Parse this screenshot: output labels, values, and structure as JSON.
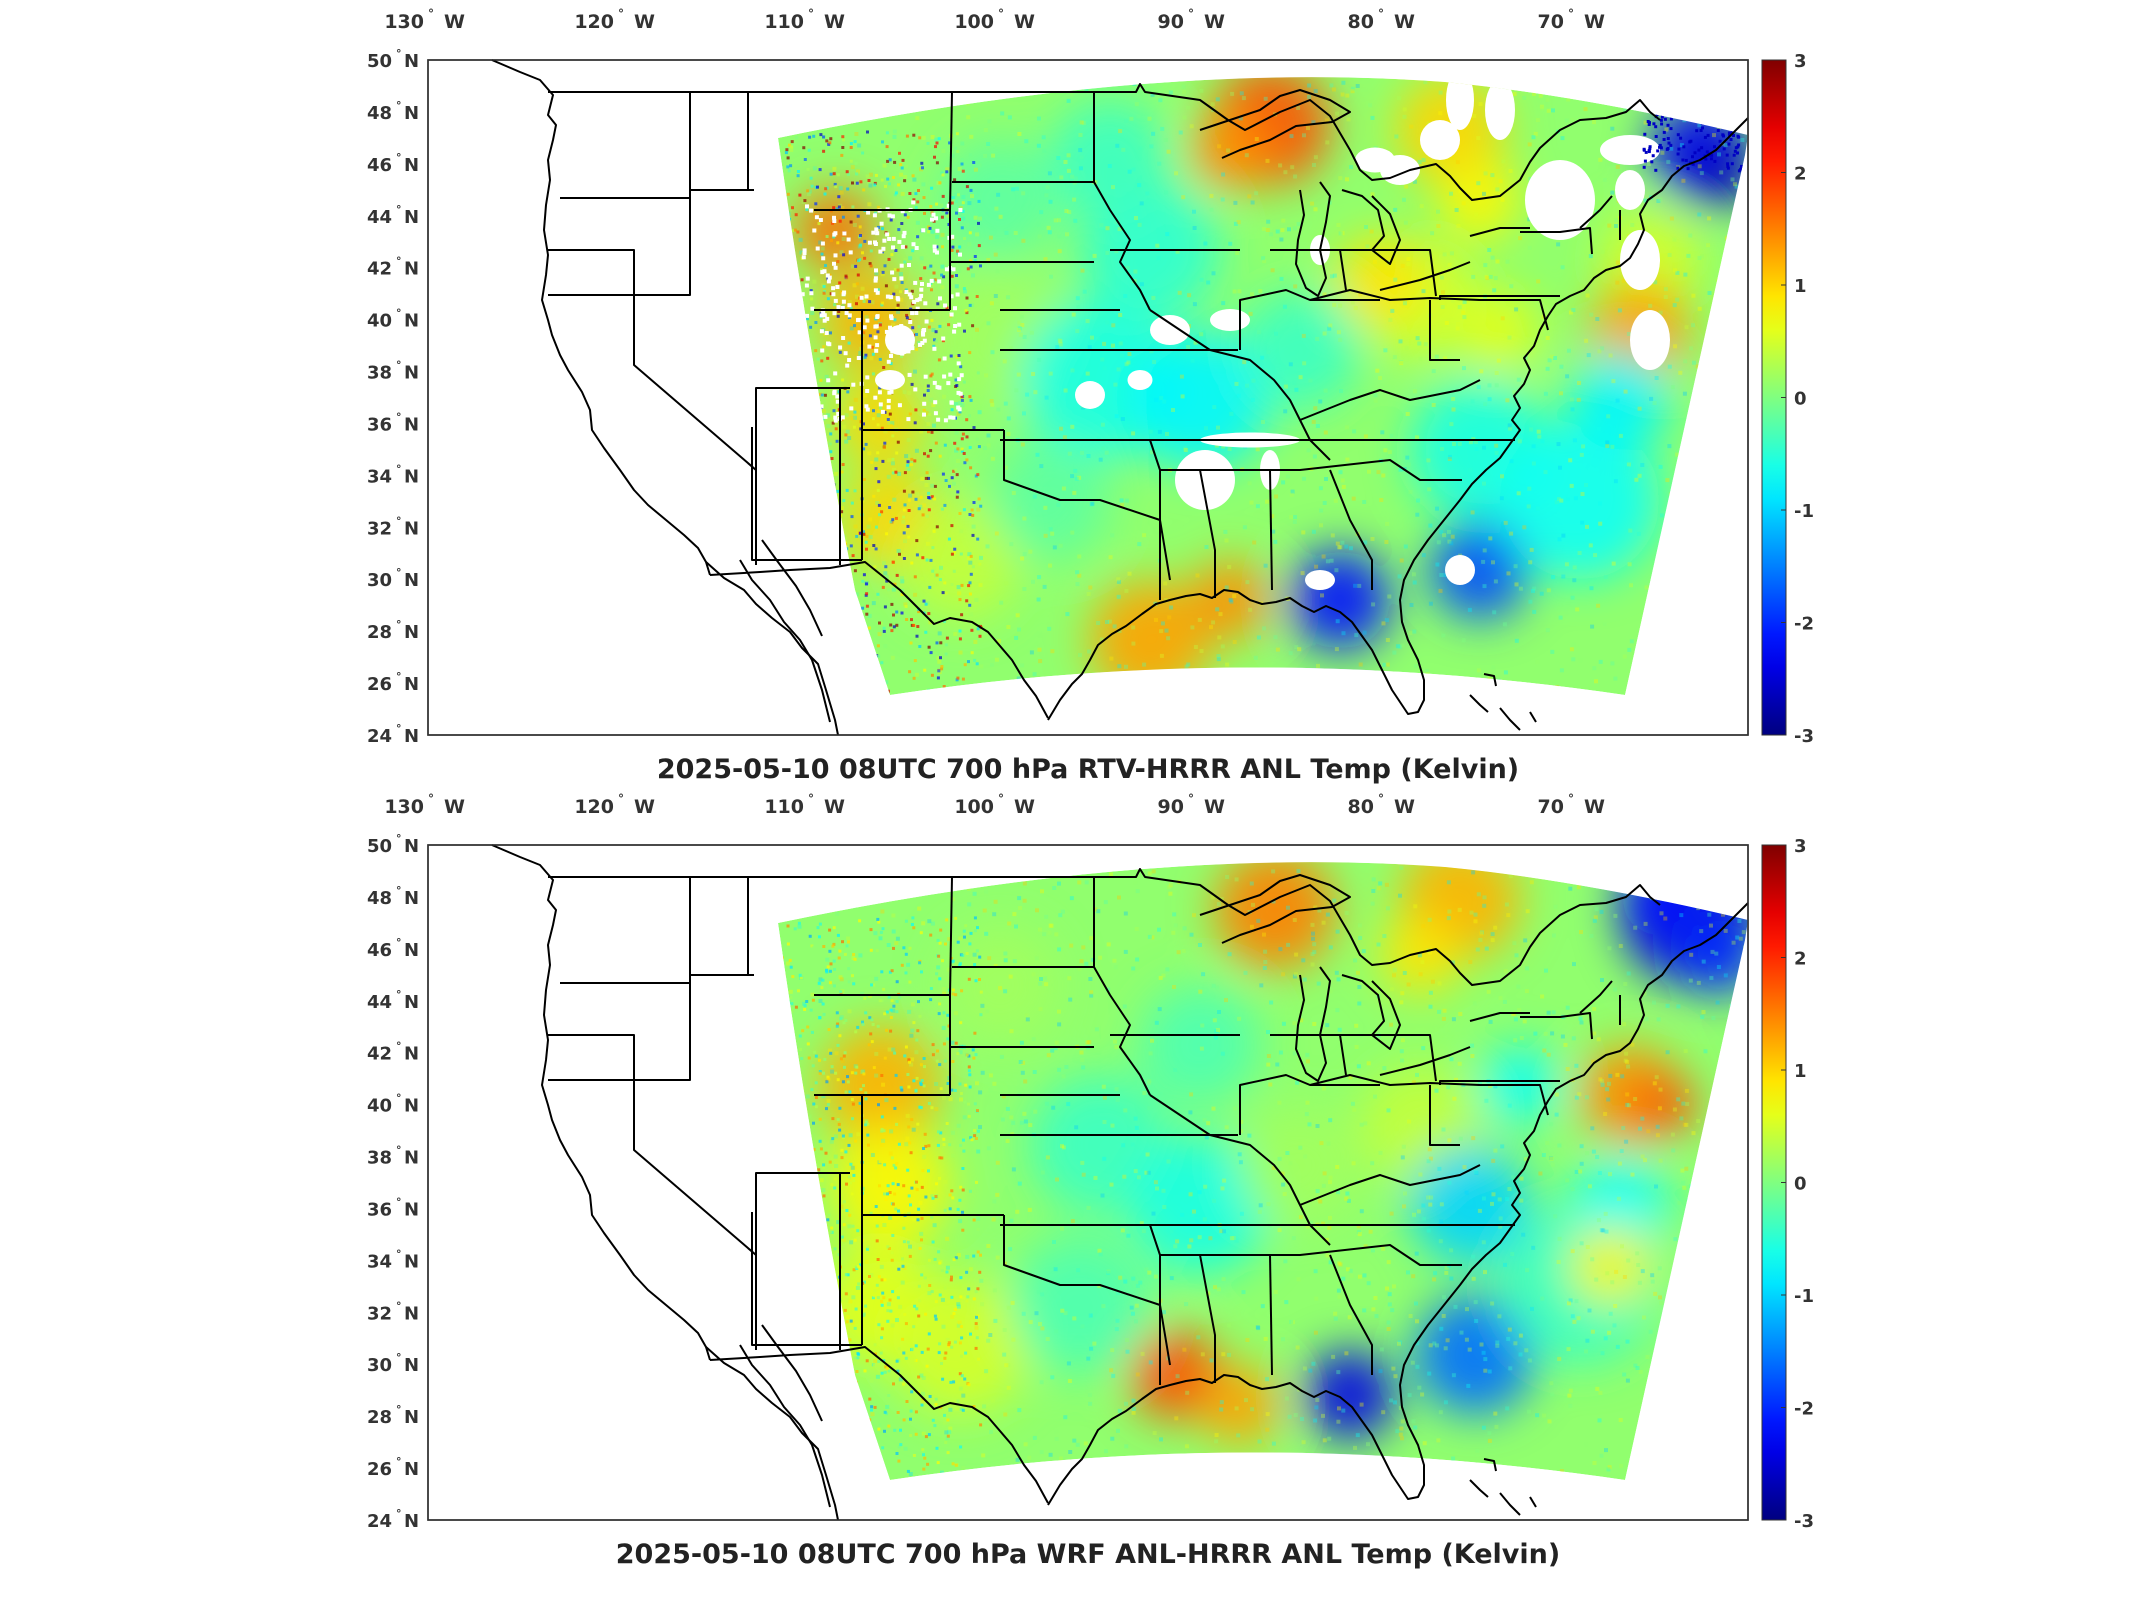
{
  "figure": {
    "panels": [
      {
        "id": "rtv",
        "title": "2025-05-10 08UTC 700 hPa RTV-HRRR ANL Temp (Kelvin)",
        "colorbar_ticks": [
          "3",
          "2",
          "1",
          "0",
          "-1",
          "-2",
          "-3"
        ],
        "lon_ticks": [
          {
            "deg": "130",
            "hem": "W"
          },
          {
            "deg": "120",
            "hem": "W"
          },
          {
            "deg": "110",
            "hem": "W"
          },
          {
            "deg": "100",
            "hem": "W"
          },
          {
            "deg": "90",
            "hem": "W"
          },
          {
            "deg": "80",
            "hem": "W"
          },
          {
            "deg": "70",
            "hem": "W"
          }
        ],
        "lat_ticks": [
          {
            "deg": "50",
            "hem": "N"
          },
          {
            "deg": "48",
            "hem": "N"
          },
          {
            "deg": "46",
            "hem": "N"
          },
          {
            "deg": "44",
            "hem": "N"
          },
          {
            "deg": "42",
            "hem": "N"
          },
          {
            "deg": "40",
            "hem": "N"
          },
          {
            "deg": "38",
            "hem": "N"
          },
          {
            "deg": "36",
            "hem": "N"
          },
          {
            "deg": "34",
            "hem": "N"
          },
          {
            "deg": "32",
            "hem": "N"
          },
          {
            "deg": "30",
            "hem": "N"
          },
          {
            "deg": "28",
            "hem": "N"
          },
          {
            "deg": "26",
            "hem": "N"
          },
          {
            "deg": "24",
            "hem": "N"
          }
        ],
        "has_missing_data": true
      },
      {
        "id": "wrf",
        "title": "2025-05-10 08UTC 700 hPa WRF ANL-HRRR ANL Temp (Kelvin)",
        "colorbar_ticks": [
          "3",
          "2",
          "1",
          "0",
          "-1",
          "-2",
          "-3"
        ],
        "lon_ticks": [
          {
            "deg": "130",
            "hem": "W"
          },
          {
            "deg": "120",
            "hem": "W"
          },
          {
            "deg": "110",
            "hem": "W"
          },
          {
            "deg": "100",
            "hem": "W"
          },
          {
            "deg": "90",
            "hem": "W"
          },
          {
            "deg": "80",
            "hem": "W"
          },
          {
            "deg": "70",
            "hem": "W"
          }
        ],
        "lat_ticks": [
          {
            "deg": "50",
            "hem": "N"
          },
          {
            "deg": "48",
            "hem": "N"
          },
          {
            "deg": "46",
            "hem": "N"
          },
          {
            "deg": "44",
            "hem": "N"
          },
          {
            "deg": "42",
            "hem": "N"
          },
          {
            "deg": "40",
            "hem": "N"
          },
          {
            "deg": "38",
            "hem": "N"
          },
          {
            "deg": "36",
            "hem": "N"
          },
          {
            "deg": "34",
            "hem": "N"
          },
          {
            "deg": "32",
            "hem": "N"
          },
          {
            "deg": "30",
            "hem": "N"
          },
          {
            "deg": "28",
            "hem": "N"
          },
          {
            "deg": "26",
            "hem": "N"
          },
          {
            "deg": "24",
            "hem": "N"
          }
        ],
        "has_missing_data": false
      }
    ],
    "colormap": "jet",
    "colorbar_range": [
      -3,
      3
    ],
    "colors": {
      "dark_red": "#800000",
      "red": "#ff0000",
      "orange": "#ff8000",
      "yellow": "#ffff00",
      "green": "#80ff80",
      "cyan": "#00ffff",
      "blue": "#0000ff",
      "navy": "#000080",
      "boundary": "#000000",
      "missing": "#ffffff"
    }
  }
}
